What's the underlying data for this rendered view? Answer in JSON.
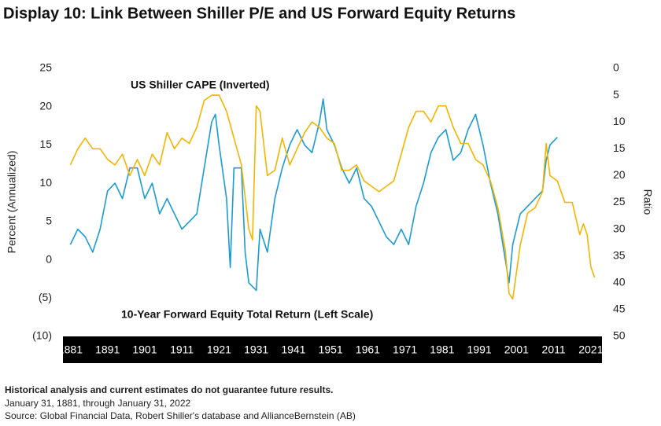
{
  "chart_data": {
    "type": "line",
    "title": "Display 10: Link Between Shiller P/E and US Forward Equity Returns",
    "ylabel": "Percent (Annualized)",
    "y2label": "Ratio",
    "annotations": [
      "US Shiller CAPE (Inverted)",
      "10-Year Forward Equity Total Return (Left Scale)"
    ],
    "notes": [
      "Historical analysis and current estimates do not guarantee future results.",
      "January 31, 1881, through January 31, 2022",
      "Source:  Global Financial Data, Robert Shiller's database and AllianceBernstein (AB)"
    ],
    "xlim": [
      1879,
      2024
    ],
    "xticks": [
      1881,
      1891,
      1901,
      1911,
      1921,
      1931,
      1941,
      1951,
      1961,
      1971,
      1981,
      1991,
      2001,
      2011,
      2021
    ],
    "ylim": [
      -10,
      25
    ],
    "yticks": [
      {
        "value": -10,
        "label": "(10)"
      },
      {
        "value": -5,
        "label": "(5)"
      },
      0,
      5,
      10,
      15,
      20,
      25
    ],
    "y2lim": [
      50,
      0
    ],
    "y2ticks": [
      0,
      5,
      10,
      15,
      20,
      25,
      30,
      35,
      40,
      45,
      50
    ],
    "grid": false,
    "series": [
      {
        "name": "10-Year Forward Equity Total Return (Left Scale)",
        "color": "#1a9bd7",
        "axis": "y",
        "x": [
          1881,
          1883,
          1885,
          1887,
          1889,
          1891,
          1893,
          1895,
          1897,
          1899,
          1901,
          1903,
          1905,
          1907,
          1909,
          1911,
          1913,
          1915,
          1917,
          1919,
          1920,
          1921,
          1923,
          1924,
          1925,
          1927,
          1928,
          1929,
          1931,
          1932,
          1934,
          1936,
          1938,
          1940,
          1942,
          1944,
          1946,
          1948,
          1949,
          1950,
          1952,
          1954,
          1956,
          1958,
          1960,
          1962,
          1964,
          1966,
          1968,
          1970,
          1972,
          1974,
          1976,
          1978,
          1980,
          1982,
          1984,
          1986,
          1988,
          1990,
          1992,
          1994,
          1996,
          1998,
          1999,
          2000,
          2002,
          2004,
          2006,
          2008,
          2009,
          2010,
          2012
        ],
        "values": [
          2,
          4,
          3,
          1,
          4,
          9,
          10,
          8,
          12,
          12,
          8,
          10,
          6,
          8,
          6,
          4,
          5,
          6,
          12,
          18,
          19,
          15,
          8,
          -1,
          12,
          12,
          1,
          -3,
          -4,
          4,
          1,
          8,
          12,
          15,
          17,
          15,
          14,
          18,
          21,
          17,
          15,
          12,
          10,
          12,
          8,
          7,
          5,
          3,
          2,
          4,
          2,
          7,
          10,
          14,
          16,
          17,
          13,
          14,
          17,
          19,
          15,
          10,
          6,
          0,
          -3,
          2,
          6,
          7,
          8,
          9,
          13,
          15,
          16
        ]
      },
      {
        "name": "US Shiller CAPE (Inverted)",
        "color": "#f5b400",
        "axis": "y2",
        "x": [
          1881,
          1883,
          1885,
          1887,
          1889,
          1891,
          1893,
          1895,
          1897,
          1899,
          1901,
          1903,
          1905,
          1907,
          1909,
          1911,
          1913,
          1915,
          1917,
          1919,
          1921,
          1923,
          1925,
          1927,
          1929,
          1930,
          1931,
          1932,
          1934,
          1936,
          1938,
          1940,
          1942,
          1944,
          1946,
          1948,
          1950,
          1952,
          1954,
          1956,
          1958,
          1960,
          1962,
          1964,
          1966,
          1968,
          1970,
          1972,
          1974,
          1976,
          1978,
          1980,
          1982,
          1984,
          1986,
          1988,
          1990,
          1992,
          1994,
          1996,
          1998,
          1999,
          2000,
          2002,
          2004,
          2006,
          2008,
          2009,
          2010,
          2012,
          2014,
          2016,
          2018,
          2019,
          2020,
          2021,
          2022
        ],
        "values": [
          18,
          15,
          13,
          15,
          15,
          17,
          18,
          16,
          20,
          17,
          20,
          16,
          18,
          12,
          15,
          13,
          14,
          11,
          6,
          5,
          5,
          8,
          13,
          18,
          30,
          32,
          7,
          8,
          20,
          19,
          13,
          18,
          15,
          12,
          10,
          11,
          13,
          14,
          19,
          19,
          18,
          21,
          22,
          23,
          22,
          21,
          16,
          11,
          8,
          8,
          10,
          7,
          7,
          11,
          14,
          14,
          17,
          18,
          21,
          26,
          34,
          42,
          43,
          33,
          27,
          26,
          23,
          14,
          20,
          21,
          25,
          25,
          31,
          29,
          31,
          37,
          39
        ]
      }
    ]
  }
}
